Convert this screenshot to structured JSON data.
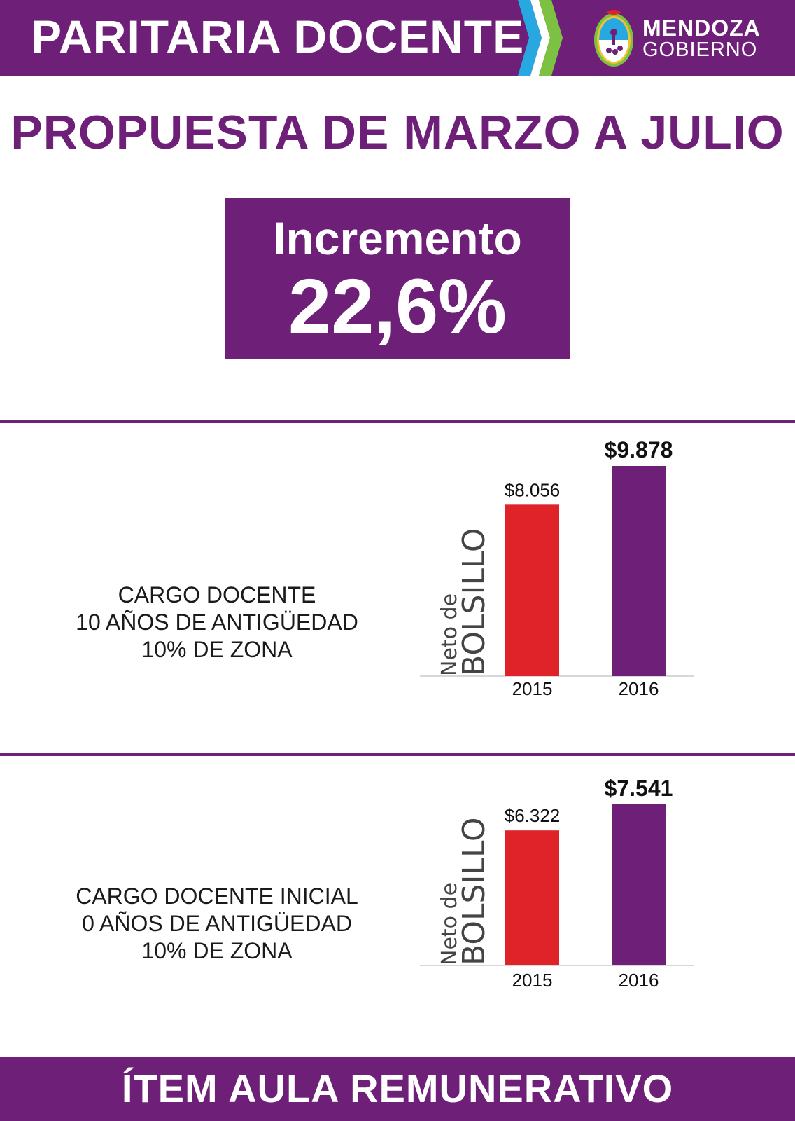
{
  "header": {
    "title": "PARITARIA DOCENTE",
    "brand_name": "MENDOZA",
    "brand_sub": "GOBIERNO",
    "logo_icon": "mendoza-coat-of-arms-icon"
  },
  "main_title": "PROPUESTA DE MARZO A JULIO",
  "increment": {
    "label": "Incremento",
    "value": "22,6%"
  },
  "sections": [
    {
      "lines": [
        "CARGO DOCENTE",
        "10 AÑOS DE ANTIGÜEDAD",
        "10% DE ZONA"
      ]
    },
    {
      "lines": [
        "CARGO DOCENTE INICIAL",
        "0 AÑOS DE ANTIGÜEDAD",
        "10% DE ZONA"
      ]
    }
  ],
  "chart_data": [
    {
      "type": "bar",
      "categories": [
        "2015",
        "2016"
      ],
      "values": [
        8056,
        9878
      ],
      "value_labels": [
        "$8.056",
        "$9.878"
      ],
      "bar_colors": [
        "#e02328",
        "#6e1f78"
      ],
      "ylabel_small": "Neto de",
      "ylabel_large": "BOLSILLO",
      "title": "",
      "xlabel": "",
      "ylim": [
        0,
        9878
      ]
    },
    {
      "type": "bar",
      "categories": [
        "2015",
        "2016"
      ],
      "values": [
        6322,
        7541
      ],
      "value_labels": [
        "$6.322",
        "$7.541"
      ],
      "bar_colors": [
        "#e02328",
        "#6e1f78"
      ],
      "ylabel_small": "Neto de",
      "ylabel_large": "BOLSILLO",
      "title": "",
      "xlabel": "",
      "ylim": [
        0,
        7541
      ]
    }
  ],
  "footer": {
    "text": "ÍTEM AULA REMUNERATIVO"
  },
  "colors": {
    "purple": "#6e1f78",
    "red": "#e02328",
    "chevron_blue": "#27a8e0",
    "chevron_green": "#7cc142"
  }
}
